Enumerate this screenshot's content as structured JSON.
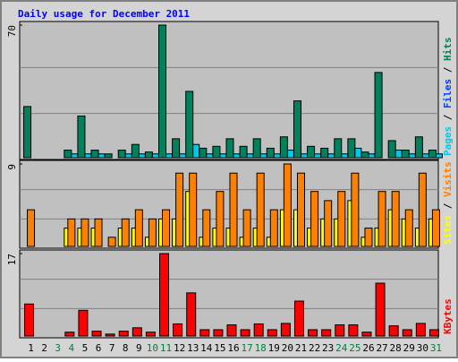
{
  "chart_data": [
    {
      "type": "bar",
      "title": "Daily usage for December 2011",
      "legend_separator": " / ",
      "ylim": [
        0,
        70
      ],
      "yticks": [
        70
      ],
      "series": [
        {
          "name": "Pages",
          "color": "#00c8e8",
          "values": [
            0,
            0,
            0,
            2,
            2,
            2,
            0,
            2,
            2,
            2,
            2,
            2,
            7,
            2,
            2,
            2,
            2,
            2,
            2,
            4,
            2,
            2,
            2,
            2,
            5,
            2,
            0,
            4,
            2,
            2,
            2
          ]
        },
        {
          "name": "Files",
          "color": "#0040ff",
          "values": [
            null,
            null,
            null,
            null,
            null,
            null,
            null,
            null,
            null,
            null,
            null,
            null,
            null,
            null,
            null,
            null,
            null,
            null,
            null,
            null,
            null,
            null,
            null,
            null,
            null,
            null,
            null,
            null,
            null,
            null,
            null
          ]
        },
        {
          "name": "Hits",
          "color": "#00805c",
          "values": [
            27,
            0,
            0,
            4,
            22,
            4,
            2,
            4,
            7,
            3,
            70,
            10,
            35,
            5,
            6,
            10,
            6,
            10,
            5,
            11,
            30,
            6,
            5,
            10,
            10,
            3,
            45,
            9,
            4,
            11,
            4
          ]
        }
      ]
    },
    {
      "type": "bar",
      "legend_separator": " / ",
      "ylim": [
        0,
        9
      ],
      "yticks": [
        9
      ],
      "series": [
        {
          "name": "Sites",
          "color": "#ffff00",
          "values": [
            0,
            0,
            0,
            2,
            2,
            2,
            0,
            2,
            2,
            1,
            3,
            3,
            6,
            1,
            2,
            2,
            1,
            2,
            1,
            4,
            4,
            2,
            3,
            3,
            5,
            1,
            2,
            4,
            3,
            2,
            3
          ]
        },
        {
          "name": "Visits",
          "color": "#ff8000",
          "values": [
            4,
            0,
            0,
            3,
            3,
            3,
            1,
            3,
            4,
            3,
            4,
            8,
            8,
            4,
            6,
            8,
            4,
            8,
            4,
            9,
            8,
            6,
            5,
            6,
            8,
            2,
            6,
            6,
            4,
            8,
            4
          ]
        }
      ]
    },
    {
      "type": "bar",
      "ylim": [
        0,
        17
      ],
      "yticks": [
        17
      ],
      "categories": [
        "1",
        "2",
        "3",
        "4",
        "5",
        "6",
        "7",
        "8",
        "9",
        "10",
        "11",
        "12",
        "13",
        "14",
        "15",
        "16",
        "17",
        "18",
        "19",
        "20",
        "21",
        "22",
        "23",
        "24",
        "25",
        "26",
        "27",
        "28",
        "29",
        "30",
        "31"
      ],
      "category_colors": [
        "#000",
        "#000",
        "#008040",
        "#008040",
        "#000",
        "#000",
        "#000",
        "#000",
        "#000",
        "#008040",
        "#008040",
        "#000",
        "#000",
        "#000",
        "#000",
        "#000",
        "#008040",
        "#008040",
        "#000",
        "#000",
        "#000",
        "#000",
        "#000",
        "#008040",
        "#008040",
        "#000",
        "#000",
        "#000",
        "#000",
        "#000",
        "#008040"
      ],
      "series": [
        {
          "name": "KBytes",
          "color": "#ff0000",
          "values": [
            6.6,
            0,
            0,
            0.8,
            5.3,
            1,
            0.4,
            1,
            1.7,
            0.8,
            17,
            2.5,
            8.9,
            1.3,
            1.3,
            2.3,
            1.3,
            2.5,
            1.3,
            2.6,
            7.2,
            1.3,
            1.3,
            2.3,
            2.3,
            0.8,
            10.9,
            2.1,
            1.3,
            2.6,
            1.3
          ]
        }
      ]
    }
  ]
}
